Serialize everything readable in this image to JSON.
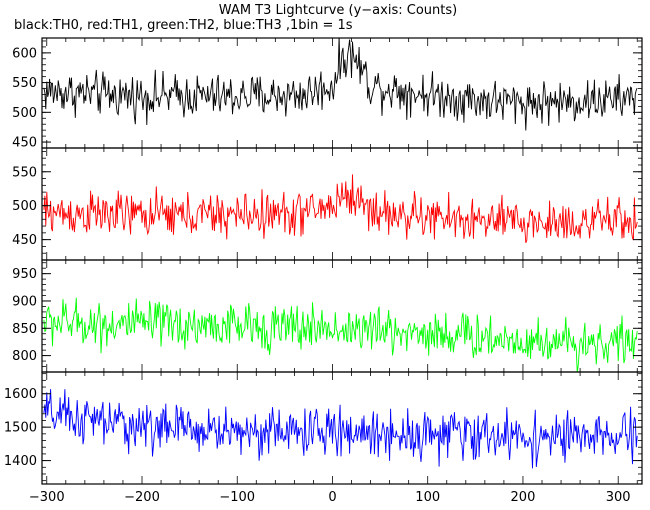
{
  "chart_data": {
    "type": "line",
    "title": "WAM T3 Lightcurve (y−axis: Counts)",
    "subtitle": "black:TH0, red:TH1, green:TH2, blue:TH3 ,1bin = 1s",
    "xlim": [
      -305,
      325
    ],
    "xticks": [
      -300,
      -200,
      -100,
      0,
      100,
      200,
      300
    ],
    "xtick_labels": [
      "−300",
      "−200",
      "−100",
      "0",
      "100",
      "200",
      "300"
    ],
    "panels": [
      {
        "name": "TH0",
        "color": "#000000",
        "ylim": [
          440,
          625
        ],
        "yticks": [
          450,
          500,
          550,
          600
        ],
        "x": [
          -300,
          -270,
          -240,
          -210,
          -180,
          -150,
          -120,
          -90,
          -60,
          -30,
          0,
          10,
          20,
          30,
          40,
          60,
          80,
          100,
          130,
          160,
          190,
          220,
          250,
          280,
          310,
          320
        ],
        "y": [
          535,
          533,
          530,
          528,
          527,
          528,
          526,
          527,
          528,
          530,
          545,
          590,
          598,
          575,
          545,
          540,
          535,
          530,
          525,
          520,
          517,
          517,
          518,
          520,
          523,
          530
        ],
        "noise": 38
      },
      {
        "name": "TH1",
        "color": "#ff0000",
        "ylim": [
          420,
          585
        ],
        "yticks": [
          450,
          500,
          550
        ],
        "x": [
          -300,
          -270,
          -240,
          -210,
          -180,
          -150,
          -120,
          -90,
          -60,
          -30,
          0,
          10,
          20,
          30,
          40,
          60,
          80,
          100,
          130,
          160,
          190,
          220,
          250,
          280,
          310,
          320
        ],
        "y": [
          490,
          488,
          487,
          487,
          486,
          486,
          486,
          487,
          487,
          490,
          500,
          515,
          515,
          505,
          495,
          487,
          485,
          483,
          480,
          477,
          476,
          475,
          476,
          477,
          478,
          480
        ],
        "noise": 34
      },
      {
        "name": "TH2",
        "color": "#00ff00",
        "ylim": [
          770,
          975
        ],
        "yticks": [
          800,
          850,
          900,
          950
        ],
        "x": [
          -300,
          -270,
          -240,
          -210,
          -180,
          -150,
          -120,
          -90,
          -60,
          -30,
          0,
          30,
          60,
          100,
          130,
          160,
          190,
          220,
          250,
          280,
          310,
          320
        ],
        "y": [
          862,
          860,
          858,
          857,
          856,
          855,
          854,
          853,
          852,
          851,
          850,
          848,
          845,
          842,
          838,
          833,
          829,
          826,
          825,
          824,
          825,
          826
        ],
        "noise": 44
      },
      {
        "name": "TH3",
        "color": "#0000ff",
        "ylim": [
          1330,
          1665
        ],
        "yticks": [
          1400,
          1500,
          1600
        ],
        "x": [
          -300,
          -270,
          -240,
          -210,
          -180,
          -150,
          -120,
          -90,
          -60,
          -30,
          0,
          30,
          60,
          100,
          130,
          160,
          190,
          220,
          250,
          280,
          310,
          320
        ],
        "y": [
          1540,
          1525,
          1515,
          1505,
          1500,
          1495,
          1490,
          1488,
          1487,
          1486,
          1485,
          1483,
          1482,
          1480,
          1478,
          1475,
          1472,
          1470,
          1468,
          1468,
          1470,
          1472
        ],
        "noise": 75
      }
    ]
  }
}
